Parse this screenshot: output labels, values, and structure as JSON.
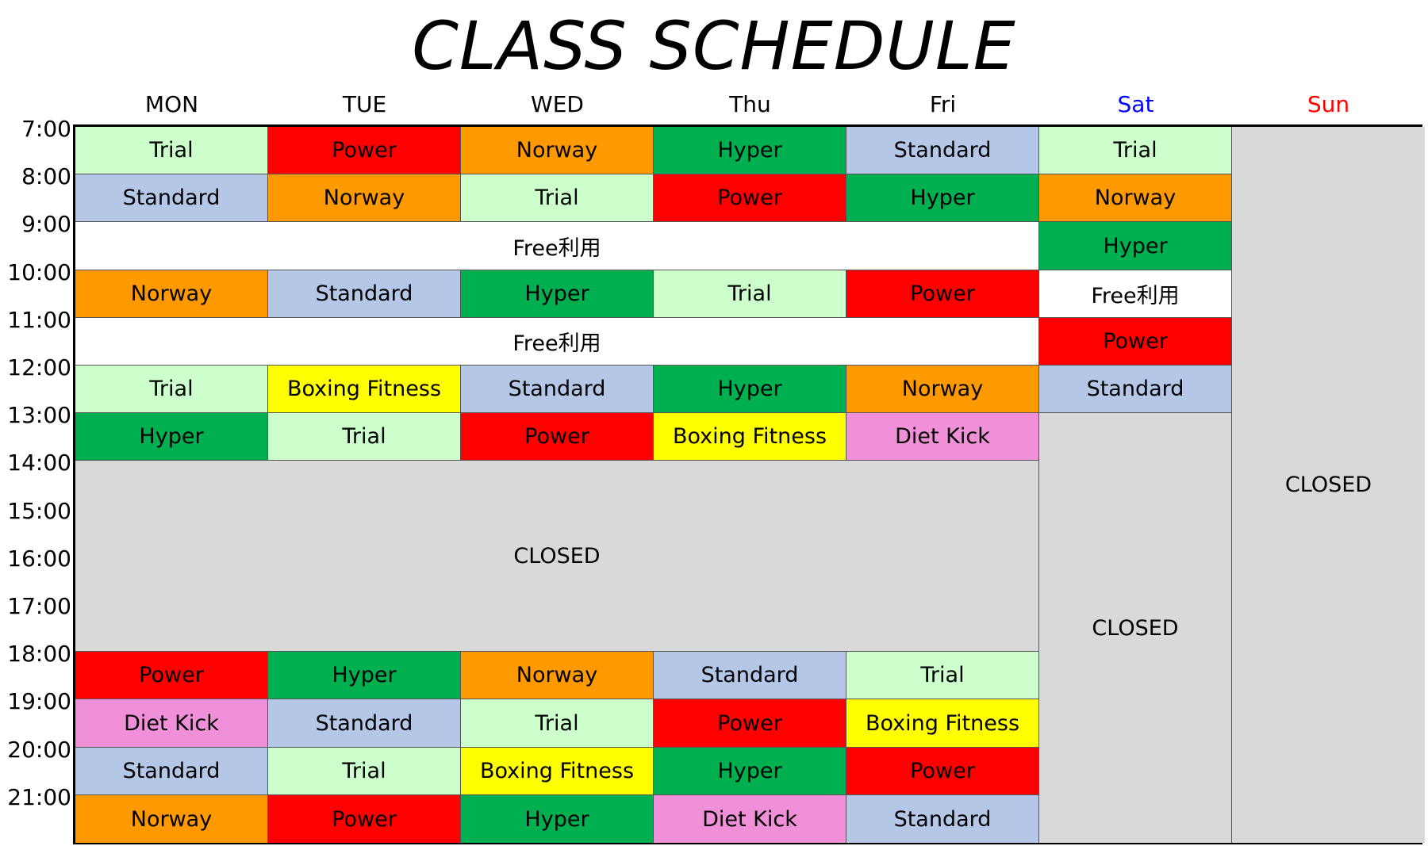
{
  "title": "CLASS SCHEDULE",
  "colors": {
    "Trial": "#ccffcc",
    "Power": "#ff0000",
    "Norway": "#ff9900",
    "Hyper": "#00b050",
    "Standard": "#b4c7e7",
    "Boxing Fitness": "#ffff00",
    "Diet Kick": "#f090d8",
    "Free利用": "#ffffff",
    "CLOSED": "#d9d9d9"
  },
  "days": [
    {
      "label": "MON",
      "color": "#000000"
    },
    {
      "label": "TUE",
      "color": "#000000"
    },
    {
      "label": "WED",
      "color": "#000000"
    },
    {
      "label": "Thu",
      "color": "#000000"
    },
    {
      "label": "Fri",
      "color": "#000000"
    },
    {
      "label": "Sat",
      "color": "#0000ff"
    },
    {
      "label": "Sun",
      "color": "#ff0000"
    }
  ],
  "times": [
    "7:00",
    "8:00",
    "9:00",
    "10:00",
    "11:00",
    "12:00",
    "13:00",
    "14:00",
    "15:00",
    "16:00",
    "17:00",
    "18:00",
    "19:00",
    "20:00",
    "21:00"
  ],
  "cells": [
    {
      "label": "Trial",
      "day": 0,
      "row": 0,
      "span": 1,
      "rows": 1
    },
    {
      "label": "Power",
      "day": 1,
      "row": 0,
      "span": 1,
      "rows": 1
    },
    {
      "label": "Norway",
      "day": 2,
      "row": 0,
      "span": 1,
      "rows": 1
    },
    {
      "label": "Hyper",
      "day": 3,
      "row": 0,
      "span": 1,
      "rows": 1
    },
    {
      "label": "Standard",
      "day": 4,
      "row": 0,
      "span": 1,
      "rows": 1
    },
    {
      "label": "Trial",
      "day": 5,
      "row": 0,
      "span": 1,
      "rows": 1
    },
    {
      "label": "CLOSED",
      "day": 6,
      "row": 0,
      "span": 1,
      "rows": 15
    },
    {
      "label": "Standard",
      "day": 0,
      "row": 1,
      "span": 1,
      "rows": 1
    },
    {
      "label": "Norway",
      "day": 1,
      "row": 1,
      "span": 1,
      "rows": 1
    },
    {
      "label": "Trial",
      "day": 2,
      "row": 1,
      "span": 1,
      "rows": 1
    },
    {
      "label": "Power",
      "day": 3,
      "row": 1,
      "span": 1,
      "rows": 1
    },
    {
      "label": "Hyper",
      "day": 4,
      "row": 1,
      "span": 1,
      "rows": 1
    },
    {
      "label": "Norway",
      "day": 5,
      "row": 1,
      "span": 1,
      "rows": 1
    },
    {
      "label": "Free利用",
      "day": 0,
      "row": 2,
      "span": 5,
      "rows": 1
    },
    {
      "label": "Hyper",
      "day": 5,
      "row": 2,
      "span": 1,
      "rows": 1
    },
    {
      "label": "Norway",
      "day": 0,
      "row": 3,
      "span": 1,
      "rows": 1
    },
    {
      "label": "Standard",
      "day": 1,
      "row": 3,
      "span": 1,
      "rows": 1
    },
    {
      "label": "Hyper",
      "day": 2,
      "row": 3,
      "span": 1,
      "rows": 1
    },
    {
      "label": "Trial",
      "day": 3,
      "row": 3,
      "span": 1,
      "rows": 1
    },
    {
      "label": "Power",
      "day": 4,
      "row": 3,
      "span": 1,
      "rows": 1
    },
    {
      "label": "Free利用",
      "day": 5,
      "row": 3,
      "span": 1,
      "rows": 1
    },
    {
      "label": "Free利用",
      "day": 0,
      "row": 4,
      "span": 5,
      "rows": 1
    },
    {
      "label": "Power",
      "day": 5,
      "row": 4,
      "span": 1,
      "rows": 1
    },
    {
      "label": "Trial",
      "day": 0,
      "row": 5,
      "span": 1,
      "rows": 1
    },
    {
      "label": "Boxing Fitness",
      "day": 1,
      "row": 5,
      "span": 1,
      "rows": 1
    },
    {
      "label": "Standard",
      "day": 2,
      "row": 5,
      "span": 1,
      "rows": 1
    },
    {
      "label": "Hyper",
      "day": 3,
      "row": 5,
      "span": 1,
      "rows": 1
    },
    {
      "label": "Norway",
      "day": 4,
      "row": 5,
      "span": 1,
      "rows": 1
    },
    {
      "label": "Standard",
      "day": 5,
      "row": 5,
      "span": 1,
      "rows": 1
    },
    {
      "label": "Hyper",
      "day": 0,
      "row": 6,
      "span": 1,
      "rows": 1
    },
    {
      "label": "Trial",
      "day": 1,
      "row": 6,
      "span": 1,
      "rows": 1
    },
    {
      "label": "Power",
      "day": 2,
      "row": 6,
      "span": 1,
      "rows": 1
    },
    {
      "label": "Boxing Fitness",
      "day": 3,
      "row": 6,
      "span": 1,
      "rows": 1
    },
    {
      "label": "Diet Kick",
      "day": 4,
      "row": 6,
      "span": 1,
      "rows": 1
    },
    {
      "label": "CLOSED",
      "day": 5,
      "row": 6,
      "span": 1,
      "rows": 9
    },
    {
      "label": "CLOSED",
      "day": 0,
      "row": 7,
      "span": 5,
      "rows": 4
    },
    {
      "label": "Power",
      "day": 0,
      "row": 11,
      "span": 1,
      "rows": 1
    },
    {
      "label": "Hyper",
      "day": 1,
      "row": 11,
      "span": 1,
      "rows": 1
    },
    {
      "label": "Norway",
      "day": 2,
      "row": 11,
      "span": 1,
      "rows": 1
    },
    {
      "label": "Standard",
      "day": 3,
      "row": 11,
      "span": 1,
      "rows": 1
    },
    {
      "label": "Trial",
      "day": 4,
      "row": 11,
      "span": 1,
      "rows": 1
    },
    {
      "label": "Diet Kick",
      "day": 0,
      "row": 12,
      "span": 1,
      "rows": 1
    },
    {
      "label": "Standard",
      "day": 1,
      "row": 12,
      "span": 1,
      "rows": 1
    },
    {
      "label": "Trial",
      "day": 2,
      "row": 12,
      "span": 1,
      "rows": 1
    },
    {
      "label": "Power",
      "day": 3,
      "row": 12,
      "span": 1,
      "rows": 1
    },
    {
      "label": "Boxing Fitness",
      "day": 4,
      "row": 12,
      "span": 1,
      "rows": 1
    },
    {
      "label": "Standard",
      "day": 0,
      "row": 13,
      "span": 1,
      "rows": 1
    },
    {
      "label": "Trial",
      "day": 1,
      "row": 13,
      "span": 1,
      "rows": 1
    },
    {
      "label": "Boxing Fitness",
      "day": 2,
      "row": 13,
      "span": 1,
      "rows": 1
    },
    {
      "label": "Hyper",
      "day": 3,
      "row": 13,
      "span": 1,
      "rows": 1
    },
    {
      "label": "Power",
      "day": 4,
      "row": 13,
      "span": 1,
      "rows": 1
    },
    {
      "label": "Norway",
      "day": 0,
      "row": 14,
      "span": 1,
      "rows": 1
    },
    {
      "label": "Power",
      "day": 1,
      "row": 14,
      "span": 1,
      "rows": 1
    },
    {
      "label": "Hyper",
      "day": 2,
      "row": 14,
      "span": 1,
      "rows": 1
    },
    {
      "label": "Diet Kick",
      "day": 3,
      "row": 14,
      "span": 1,
      "rows": 1
    },
    {
      "label": "Standard",
      "day": 4,
      "row": 14,
      "span": 1,
      "rows": 1
    }
  ]
}
